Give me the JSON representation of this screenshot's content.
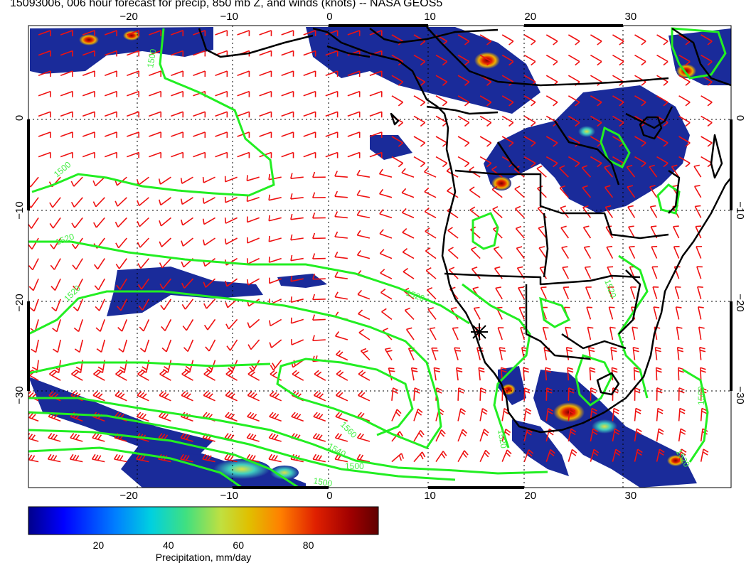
{
  "title": "15093006, 006 hour forecast for precip, 850 mb Z, and winds (knots) -- NASA GEOS5",
  "map": {
    "lon_ticks": [
      -20,
      -10,
      0,
      10,
      20,
      30
    ],
    "lat_ticks": [
      0,
      -10,
      -20,
      -30
    ],
    "lon_range": [
      -30,
      40
    ],
    "lat_range": [
      -40,
      10
    ],
    "contour_labels": [
      "1500",
      "1500",
      "1520",
      "1520",
      "1520",
      "1520",
      "1540",
      "1560",
      "1560",
      "1520",
      "1500",
      "1500",
      "1520"
    ],
    "colors": {
      "contour": "#22ee22",
      "wind_barb": "#ee1111",
      "coastline": "#000000",
      "precip_low": "#1a2b9a",
      "precip_high": "#c81010"
    }
  },
  "colorbar": {
    "ticks": [
      "20",
      "40",
      "60",
      "80"
    ],
    "tick_values": [
      20,
      40,
      60,
      80
    ],
    "range": [
      0,
      100
    ],
    "label": "Precipitation, mm/day",
    "colormap": [
      "#00008b",
      "#0000ff",
      "#0080ff",
      "#00d0e0",
      "#40e080",
      "#c0e040",
      "#e0c000",
      "#ff8000",
      "#e02000",
      "#a00000",
      "#600000"
    ]
  }
}
